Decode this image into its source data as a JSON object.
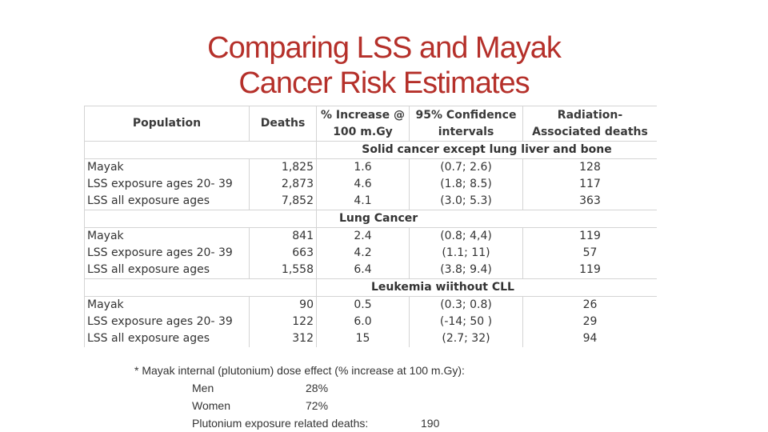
{
  "title": {
    "line1": "Comparing LSS and Mayak",
    "line2": "Cancer Risk Estimates"
  },
  "table": {
    "headers": {
      "population": "Population",
      "deaths": "Deaths",
      "increase": "% Increase @ 100 m.Gy",
      "ci": "95% Confidence intervals",
      "radiation": "Radiation-Associated deaths"
    },
    "sections": [
      {
        "label": "Solid cancer except lung liver and bone",
        "rows": [
          {
            "population": "Mayak",
            "deaths": "1,825",
            "increase": "1.6",
            "ci": "(0.7; 2.6)",
            "radiation": "128"
          },
          {
            "population": "LSS exposure ages 20- 39",
            "deaths": "2,873",
            "increase": "4.6",
            "ci": "(1.8; 8.5)",
            "radiation": "117"
          },
          {
            "population": "LSS all exposure ages",
            "deaths": "7,852",
            "increase": "4.1",
            "ci": "(3.0; 5.3)",
            "radiation": "363"
          }
        ]
      },
      {
        "label": "Lung Cancer",
        "rows": [
          {
            "population": "Mayak",
            "deaths": "841",
            "increase": "2.4",
            "ci": "(0.8; 4,4)",
            "radiation": "119"
          },
          {
            "population": "LSS exposure ages 20- 39",
            "deaths": "663",
            "increase": "4.2",
            "ci": "(1.1; 11)",
            "radiation": "57"
          },
          {
            "population": "LSS all exposure ages",
            "deaths": "1,558",
            "increase": "6.4",
            "ci": "(3.8; 9.4)",
            "radiation": "119"
          }
        ]
      },
      {
        "label": "Leukemia wiithout CLL",
        "rows": [
          {
            "population": "Mayak",
            "deaths": "90",
            "increase": "0.5",
            "ci": "(0.3; 0.8)",
            "radiation": "26"
          },
          {
            "population": "LSS exposure ages 20- 39",
            "deaths": "122",
            "increase": "6.0",
            "ci": "(-14; 50 )",
            "radiation": "29"
          },
          {
            "population": "LSS all exposure ages",
            "deaths": "312",
            "increase": "15",
            "ci": "(2.7; 32)",
            "radiation": "94"
          }
        ]
      }
    ]
  },
  "notes": {
    "main": "* Mayak internal (plutonium) dose effect (% increase at 100 m.Gy):",
    "men_label": "Men",
    "men_value": "28%",
    "women_label": "Women",
    "women_value": "72%",
    "pu_label": "Plutonium  exposure related deaths:",
    "pu_value": "190"
  }
}
